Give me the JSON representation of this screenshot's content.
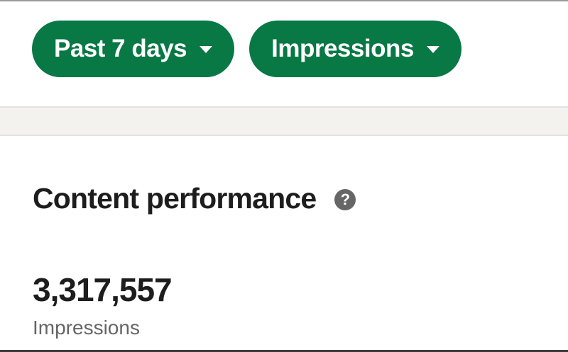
{
  "colors": {
    "accent": "#087845",
    "band": "#f3f2ef"
  },
  "filters": [
    {
      "label": "Past 7 days",
      "icon": "caret-down-icon"
    },
    {
      "label": "Impressions",
      "icon": "caret-down-icon"
    }
  ],
  "section": {
    "title": "Content performance",
    "help_icon": "question-circle-icon",
    "help_glyph": "?"
  },
  "metric": {
    "value": "3,317,557",
    "label": "Impressions"
  }
}
